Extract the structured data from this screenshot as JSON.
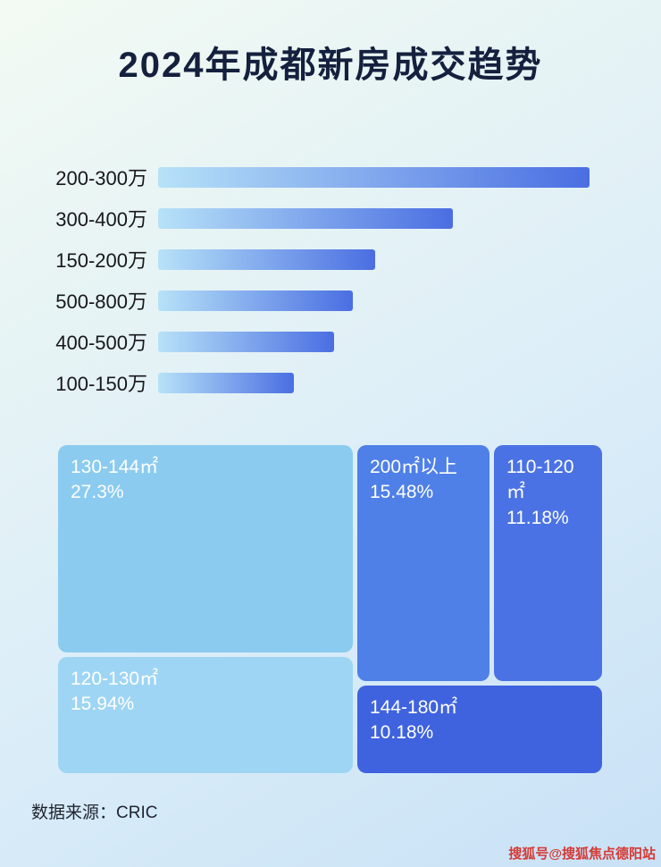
{
  "title": "2024年成都新房成交趋势",
  "colors": {
    "bar_gradient_start": "#b7e2f8",
    "bar_gradient_end": "#4a6ee2",
    "treemap_light_1": "#8bcbf0",
    "treemap_light_2": "#9ed5f4",
    "treemap_medium_1": "#4f80e8",
    "treemap_medium_2": "#4a72e4",
    "treemap_dark": "#3f63de",
    "title_color": "#14203d",
    "watermark_color": "#d63a35"
  },
  "chart_data": [
    {
      "type": "bar",
      "orientation": "horizontal",
      "title": "2024年成都新房成交趋势",
      "categories": [
        "200-300万",
        "300-400万",
        "150-200万",
        "500-800万",
        "400-500万",
        "100-150万"
      ],
      "values": [
        100,
        68.3,
        50.3,
        45.1,
        40.8,
        31.5
      ],
      "value_note": "relative bar length, max = 100 (no numeric labels shown in image)",
      "xlabel": "",
      "ylabel": "",
      "grid": false,
      "legend": "none"
    },
    {
      "type": "treemap",
      "items": [
        {
          "label": "130-144㎡",
          "percent": 27.3,
          "percent_label": "27.3%",
          "color": "#8bcbf0"
        },
        {
          "label": "200㎡以上",
          "percent": 15.48,
          "percent_label": "15.48%",
          "color": "#4f80e8"
        },
        {
          "label": "110-120㎡",
          "percent": 11.18,
          "percent_label": "11.18%",
          "color": "#4a72e4"
        },
        {
          "label": "120-130㎡",
          "percent": 15.94,
          "percent_label": "15.94%",
          "color": "#9ed5f4"
        },
        {
          "label": "144-180㎡",
          "percent": 10.18,
          "percent_label": "10.18%",
          "color": "#3f63de"
        }
      ]
    }
  ],
  "footer": {
    "source": "数据来源：CRIC"
  },
  "watermark": {
    "text": "搜狐号@搜狐焦点德阳站"
  }
}
